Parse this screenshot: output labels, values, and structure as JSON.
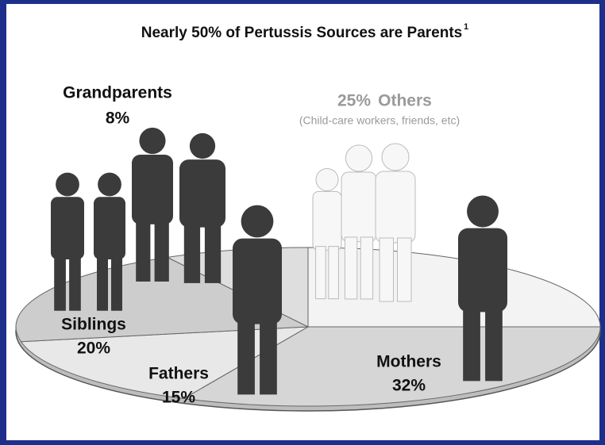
{
  "chart_data": {
    "type": "pie",
    "title": "Nearly 50% of Pertussis Sources are Parents",
    "title_footnote": "1",
    "categories": [
      "Others",
      "Mothers",
      "Fathers",
      "Siblings",
      "Grandparents"
    ],
    "values": [
      25,
      32,
      15,
      20,
      8
    ],
    "value_labels": [
      "25%",
      "32%",
      "15%",
      "20%",
      "8%"
    ],
    "colors": [
      "#f3f3f3",
      "#d6d6d6",
      "#e8e8e8",
      "#cdcdcd",
      "#dedede"
    ],
    "annotations": [
      "(Child-care workers, friends, etc)"
    ]
  }
}
